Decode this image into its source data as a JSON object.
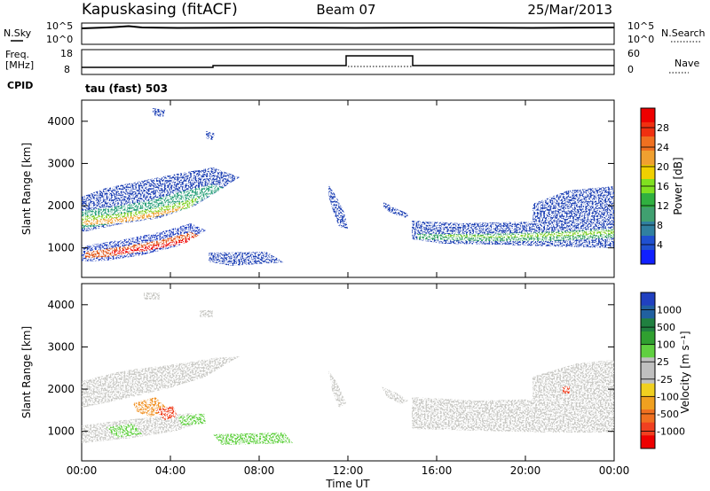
{
  "header": {
    "station": "Kapuskasing (fitACF)",
    "beam": "Beam 07",
    "date": "25/Mar/2013"
  },
  "panels": {
    "noise": {
      "left_label": "N.Sky",
      "right_label": "N.Search",
      "left_ticks": [
        "10^5",
        "10^0"
      ],
      "right_ticks": [
        "10^5",
        "10^0"
      ]
    },
    "freq": {
      "left_label_line1": "Freq.",
      "left_label_line2": "[MHz]",
      "right_label": "Nave",
      "left_ticks": [
        "18",
        "8"
      ],
      "right_ticks": [
        "60",
        "0"
      ]
    },
    "cpid": {
      "label": "CPID",
      "text": "tau (fast) 503"
    }
  },
  "chart_data": [
    {
      "type": "heatmap",
      "name": "power",
      "ylabel": "Slant Range [km]",
      "yticks": [
        1000,
        2000,
        3000,
        4000
      ],
      "ylim": [
        300,
        4500
      ],
      "colorbar": {
        "label": "Power [dB]",
        "ticks": [
          "28",
          "24",
          "20",
          "16",
          "12",
          "8",
          "4"
        ],
        "colors": [
          "#ee0000",
          "#f03010",
          "#f07020",
          "#f0a030",
          "#f0d000",
          "#80e020",
          "#30b040",
          "#40a070",
          "#3080a0",
          "#2050d0",
          "#1020ff"
        ]
      }
    },
    {
      "type": "heatmap",
      "name": "velocity",
      "ylabel": "Slant Range [km]",
      "yticks": [
        1000,
        2000,
        3000,
        4000
      ],
      "ylim": [
        300,
        4500
      ],
      "colorbar": {
        "label": "Velocity [m s⁻¹]",
        "ticks": [
          "1000",
          "500",
          "100",
          "25",
          "-25",
          "-100",
          "-500",
          "-1000"
        ],
        "colors": [
          "#2040c0",
          "#2060a0",
          "#208040",
          "#30a030",
          "#60d040",
          "#c0c0c0",
          "#c0c0c0",
          "#f0d020",
          "#f0a020",
          "#f07020",
          "#f04020",
          "#ee0000"
        ]
      }
    }
  ],
  "xaxis": {
    "label": "Time UT",
    "ticks": [
      "00:00",
      "04:00",
      "08:00",
      "12:00",
      "16:00",
      "20:00",
      "00:00"
    ]
  }
}
